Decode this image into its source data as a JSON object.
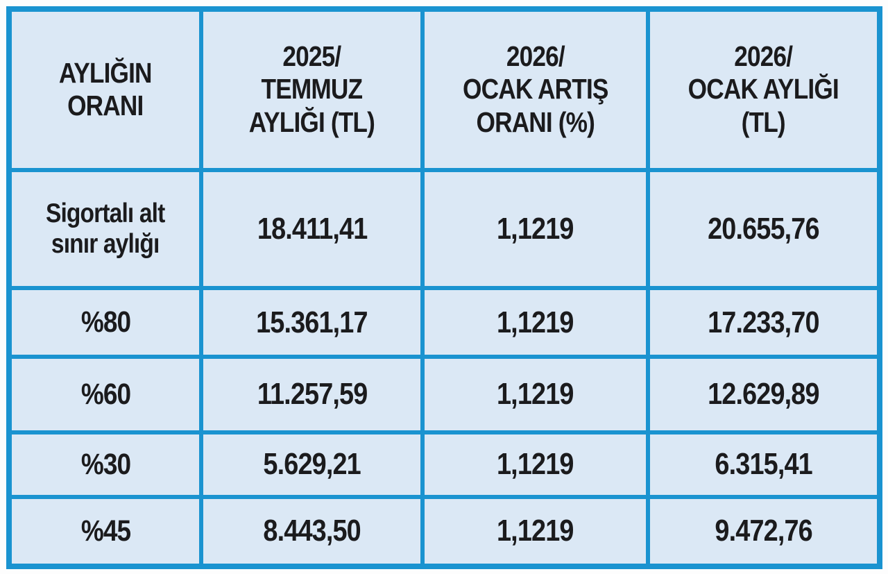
{
  "page": {
    "background_color": "#fdfdfd"
  },
  "table_style": {
    "grid_border_color": "#1a93d0",
    "cell_background_color": "#dbe8f5",
    "text_color": "#1b1b1d"
  },
  "chart_data": {
    "type": "table",
    "title": "",
    "columns": [
      "AYLIĞIN ORANI",
      "2025/ TEMMUZ AYLIĞI (TL)",
      "2026/ OCAK ARTIŞ ORANI (%)",
      "2026/ OCAK AYLIĞI (TL)"
    ],
    "rows": [
      [
        "Sigortalı alt sınır aylığı",
        "18.411,41",
        "1,1219",
        "20.655,76"
      ],
      [
        "%80",
        "15.361,17",
        "1,1219",
        "17.233,70"
      ],
      [
        "%60",
        "11.257,59",
        "1,1219",
        "12.629,89"
      ],
      [
        "%30",
        "5.629,21",
        "1,1219",
        "6.315,41"
      ],
      [
        "%45",
        "8.443,50",
        "1,1219",
        "9.472,76"
      ]
    ]
  },
  "display": {
    "headers": [
      "AYLIĞIN\nORANI",
      "2025/\nTEMMUZ\nAYLIĞI (TL)",
      "2026/\nOCAK ARTIŞ\nORANI (%)",
      "2026/\nOCAK AYLIĞI\n(TL)"
    ],
    "cells": [
      [
        "Sigortalı alt\nsınır aylığı",
        "18.411,41",
        "1,1219",
        "20.655,76"
      ],
      [
        "%80",
        "15.361,17",
        "1,1219",
        "17.233,70"
      ],
      [
        "%60",
        "11.257,59",
        "1,1219",
        "12.629,89"
      ],
      [
        "%30",
        "5.629,21",
        "1,1219",
        "6.315,41"
      ],
      [
        "%45",
        "8.443,50",
        "1,1219",
        "9.472,76"
      ]
    ]
  }
}
